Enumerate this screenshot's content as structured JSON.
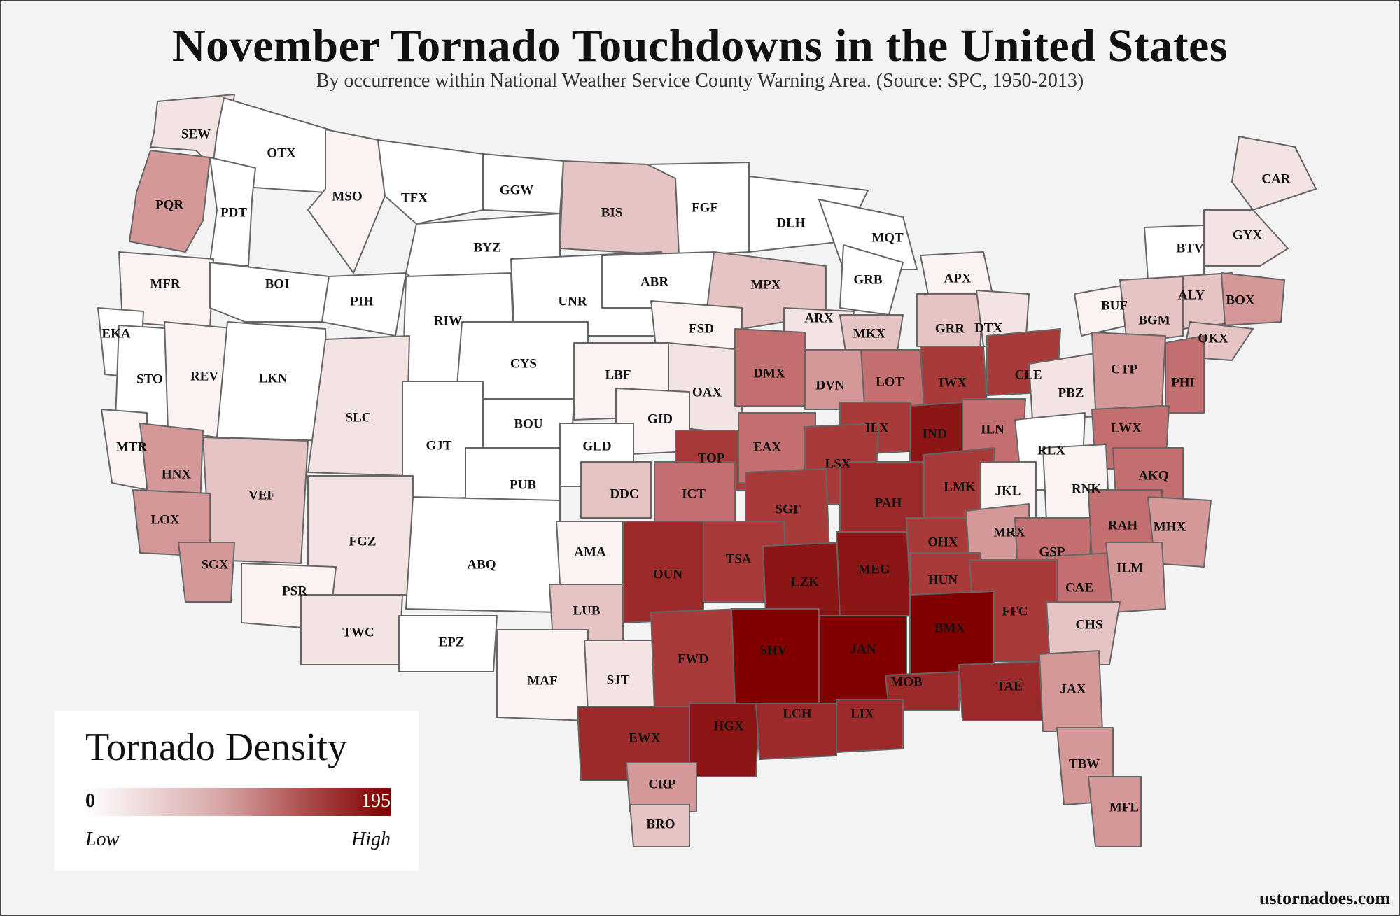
{
  "title": "November Tornado Touchdowns in the United States",
  "subtitle": "By occurrence within National Weather Service County Warning Area. (Source: SPC, 1950-2013)",
  "legend": {
    "title": "Tornado Density",
    "min": "0",
    "max": "195",
    "low_label": "Low",
    "high_label": "High",
    "colors": [
      "#ffffff",
      "#800000"
    ]
  },
  "credit": "ustornadoes.com",
  "colors": {
    "background": "#f3f3f3",
    "border": "#666666",
    "level_0": "#ffffff",
    "level_1": "#fbf2f2",
    "level_2": "#f3e3e3",
    "level_3": "#e6c4c4",
    "level_4": "#d49898",
    "level_5": "#c36f6f",
    "level_6": "#a93a3a",
    "level_7": "#9c2a2a",
    "level_8": "#8c1515",
    "level_9": "#800000"
  },
  "chart_data": {
    "type": "choropleth",
    "title": "November Tornado Touchdowns in the United States",
    "value_range": [
      0,
      195
    ],
    "scale": "relative density level 0 (Low) to 9 (High)",
    "regions": [
      {
        "code": "SEW",
        "level": 2
      },
      {
        "code": "OTX",
        "level": 0
      },
      {
        "code": "PQR",
        "level": 4
      },
      {
        "code": "PDT",
        "level": 0
      },
      {
        "code": "MSO",
        "level": 1
      },
      {
        "code": "TFX",
        "level": 0
      },
      {
        "code": "GGW",
        "level": 0
      },
      {
        "code": "BIS",
        "level": 3
      },
      {
        "code": "FGF",
        "level": 0
      },
      {
        "code": "DLH",
        "level": 0
      },
      {
        "code": "MQT",
        "level": 0
      },
      {
        "code": "CAR",
        "level": 2
      },
      {
        "code": "BTV",
        "level": 0
      },
      {
        "code": "GYX",
        "level": 2
      },
      {
        "code": "MFR",
        "level": 1
      },
      {
        "code": "BOI",
        "level": 0
      },
      {
        "code": "BYZ",
        "level": 0
      },
      {
        "code": "UNR",
        "level": 0
      },
      {
        "code": "ABR",
        "level": 0
      },
      {
        "code": "MPX",
        "level": 3
      },
      {
        "code": "GRB",
        "level": 0
      },
      {
        "code": "APX",
        "level": 1
      },
      {
        "code": "BUF",
        "level": 1
      },
      {
        "code": "ALY",
        "level": 3
      },
      {
        "code": "BOX",
        "level": 4
      },
      {
        "code": "BGM",
        "level": 3
      },
      {
        "code": "OKX",
        "level": 3
      },
      {
        "code": "EKA",
        "level": 0
      },
      {
        "code": "PIH",
        "level": 0
      },
      {
        "code": "RIW",
        "level": 0
      },
      {
        "code": "FSD",
        "level": 1
      },
      {
        "code": "ARX",
        "level": 2
      },
      {
        "code": "MKX",
        "level": 3
      },
      {
        "code": "GRR",
        "level": 3
      },
      {
        "code": "DTX",
        "level": 2
      },
      {
        "code": "STO",
        "level": 0
      },
      {
        "code": "REV",
        "level": 1
      },
      {
        "code": "LKN",
        "level": 0
      },
      {
        "code": "SLC",
        "level": 2
      },
      {
        "code": "CYS",
        "level": 0
      },
      {
        "code": "LBF",
        "level": 1
      },
      {
        "code": "OAX",
        "level": 2
      },
      {
        "code": "DMX",
        "level": 5
      },
      {
        "code": "DVN",
        "level": 4
      },
      {
        "code": "LOT",
        "level": 5
      },
      {
        "code": "IWX",
        "level": 6
      },
      {
        "code": "CLE",
        "level": 6
      },
      {
        "code": "PBZ",
        "level": 2
      },
      {
        "code": "CTP",
        "level": 4
      },
      {
        "code": "PHI",
        "level": 5
      },
      {
        "code": "MTR",
        "level": 1
      },
      {
        "code": "HNX",
        "level": 4
      },
      {
        "code": "GJT",
        "level": 0
      },
      {
        "code": "BOU",
        "level": 0
      },
      {
        "code": "GID",
        "level": 1
      },
      {
        "code": "ILX",
        "level": 6
      },
      {
        "code": "IND",
        "level": 8
      },
      {
        "code": "ILN",
        "level": 5
      },
      {
        "code": "LWX",
        "level": 5
      },
      {
        "code": "RLX",
        "level": 0
      },
      {
        "code": "TOP",
        "level": 6
      },
      {
        "code": "EAX",
        "level": 5
      },
      {
        "code": "LSX",
        "level": 6
      },
      {
        "code": "GLD",
        "level": 0
      },
      {
        "code": "VEF",
        "level": 3
      },
      {
        "code": "PUB",
        "level": 0
      },
      {
        "code": "DDC",
        "level": 3
      },
      {
        "code": "ICT",
        "level": 5
      },
      {
        "code": "SGF",
        "level": 6
      },
      {
        "code": "PAH",
        "level": 7
      },
      {
        "code": "LMK",
        "level": 6
      },
      {
        "code": "JKL",
        "level": 1
      },
      {
        "code": "RNK",
        "level": 1
      },
      {
        "code": "AKQ",
        "level": 5
      },
      {
        "code": "LOX",
        "level": 4
      },
      {
        "code": "FGZ",
        "level": 2
      },
      {
        "code": "ABQ",
        "level": 0
      },
      {
        "code": "AMA",
        "level": 1
      },
      {
        "code": "TSA",
        "level": 6
      },
      {
        "code": "OUN",
        "level": 7
      },
      {
        "code": "LZK",
        "level": 8
      },
      {
        "code": "MEG",
        "level": 8
      },
      {
        "code": "OHX",
        "level": 6
      },
      {
        "code": "MRX",
        "level": 4
      },
      {
        "code": "GSP",
        "level": 5
      },
      {
        "code": "RAH",
        "level": 5
      },
      {
        "code": "MHX",
        "level": 4
      },
      {
        "code": "SGX",
        "level": 4
      },
      {
        "code": "PSR",
        "level": 1
      },
      {
        "code": "TWC",
        "level": 2
      },
      {
        "code": "LUB",
        "level": 3
      },
      {
        "code": "HUN",
        "level": 6
      },
      {
        "code": "CAE",
        "level": 5
      },
      {
        "code": "ILM",
        "level": 4
      },
      {
        "code": "FFC",
        "level": 6
      },
      {
        "code": "BMX",
        "level": 9
      },
      {
        "code": "CHS",
        "level": 3
      },
      {
        "code": "EPZ",
        "level": 0
      },
      {
        "code": "MAF",
        "level": 1
      },
      {
        "code": "SJT",
        "level": 2
      },
      {
        "code": "FWD",
        "level": 6
      },
      {
        "code": "SHV",
        "level": 9
      },
      {
        "code": "JAN",
        "level": 9
      },
      {
        "code": "MOB",
        "level": 7
      },
      {
        "code": "TAE",
        "level": 7
      },
      {
        "code": "JAX",
        "level": 4
      },
      {
        "code": "EWX",
        "level": 7
      },
      {
        "code": "HGX",
        "level": 8
      },
      {
        "code": "LCH",
        "level": 7
      },
      {
        "code": "LIX",
        "level": 7
      },
      {
        "code": "CRP",
        "level": 4
      },
      {
        "code": "TBW",
        "level": 4
      },
      {
        "code": "BRO",
        "level": 3
      },
      {
        "code": "MFL",
        "level": 4
      }
    ]
  }
}
